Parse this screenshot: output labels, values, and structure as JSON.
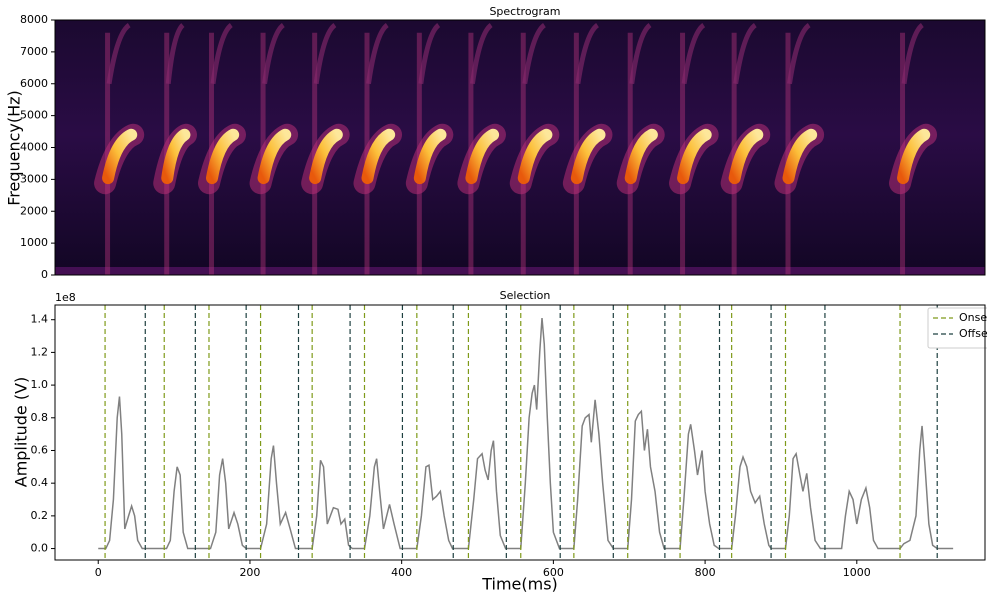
{
  "chart_data": [
    {
      "type": "spectrogram",
      "title": "Spectrogram",
      "ylabel": "Frequency(Hz)",
      "ylim": [
        0,
        8000
      ],
      "yticks": [
        0,
        1000,
        2000,
        3000,
        4000,
        5000,
        6000,
        7000,
        8000
      ],
      "xlim": [
        -57,
        1169
      ]
    },
    {
      "type": "line",
      "title": "Selection",
      "xlabel": "Time(ms)",
      "ylabel": "Amplitude (V)",
      "y_offset_label": "1e8",
      "xlim": [
        -57,
        1169
      ],
      "xticks": [
        0,
        200,
        400,
        600,
        800,
        1000
      ],
      "ylim": [
        -0.07,
        1.49
      ],
      "yticks": [
        {
          "value": 0,
          "label": "0.0"
        },
        0.2,
        0.4,
        0.6,
        0.8,
        {
          "value": 1,
          "label": "1.0"
        },
        1.2,
        1.4
      ],
      "legend": "upper right",
      "series": [
        {
          "color": "#808080",
          "x": [
            0,
            10,
            15,
            20,
            25,
            28,
            31,
            35,
            40,
            44,
            48,
            52,
            58,
            90,
            95,
            100,
            104,
            108,
            112,
            118,
            148,
            155,
            160,
            164,
            168,
            172,
            179,
            184,
            190,
            195,
            214,
            222,
            228,
            231,
            235,
            240,
            247,
            253,
            260,
            282,
            288,
            293,
            297,
            302,
            310,
            316,
            320,
            325,
            330,
            335,
            351,
            358,
            364,
            367,
            371,
            376,
            384,
            390,
            398,
            420,
            426,
            432,
            436,
            441,
            446,
            451,
            456,
            462,
            467,
            488,
            495,
            500,
            506,
            510,
            514,
            518,
            521,
            525,
            530,
            537,
            557,
            563,
            568,
            572,
            575,
            578,
            582,
            585,
            588,
            592,
            596,
            600,
            608,
            627,
            632,
            638,
            642,
            647,
            650,
            655,
            660,
            665,
            672,
            679,
            698,
            703,
            708,
            712,
            716,
            720,
            724,
            728,
            734,
            740,
            746,
            767,
            772,
            778,
            781,
            786,
            790,
            796,
            800,
            806,
            812,
            818,
            835,
            840,
            846,
            850,
            855,
            860,
            866,
            872,
            878,
            884,
            887,
            906,
            911,
            916,
            920,
            925,
            929,
            934,
            939,
            945,
            952,
            980,
            985,
            990,
            995,
            1000,
            1006,
            1012,
            1017,
            1022,
            1028,
            1057,
            1062,
            1070,
            1078,
            1083,
            1086,
            1090,
            1095,
            1100,
            1106,
            1127
          ],
          "y": [
            0,
            0,
            0.05,
            0.3,
            0.8,
            0.93,
            0.7,
            0.12,
            0.2,
            0.26,
            0.2,
            0.05,
            0,
            0,
            0.05,
            0.35,
            0.5,
            0.45,
            0.1,
            0,
            0,
            0.1,
            0.45,
            0.55,
            0.4,
            0.12,
            0.22,
            0.15,
            0.02,
            0,
            0,
            0.15,
            0.55,
            0.63,
            0.4,
            0.15,
            0.22,
            0.12,
            0,
            0,
            0.2,
            0.54,
            0.5,
            0.15,
            0.25,
            0.24,
            0.15,
            0.18,
            0.02,
            0,
            0,
            0.2,
            0.5,
            0.55,
            0.35,
            0.12,
            0.27,
            0.15,
            0,
            0,
            0.2,
            0.5,
            0.51,
            0.3,
            0.32,
            0.35,
            0.2,
            0.05,
            0,
            0,
            0.3,
            0.55,
            0.58,
            0.48,
            0.42,
            0.6,
            0.66,
            0.35,
            0.08,
            0,
            0,
            0.4,
            0.8,
            0.95,
            1.0,
            0.85,
            1.2,
            1.41,
            1.25,
            0.8,
            0.4,
            0.1,
            0,
            0,
            0.3,
            0.75,
            0.8,
            0.82,
            0.65,
            0.91,
            0.7,
            0.4,
            0.05,
            0,
            0,
            0.3,
            0.78,
            0.82,
            0.84,
            0.6,
            0.73,
            0.5,
            0.35,
            0.1,
            0,
            0,
            0.3,
            0.7,
            0.76,
            0.6,
            0.45,
            0.6,
            0.35,
            0.15,
            0.02,
            0,
            0,
            0.2,
            0.5,
            0.56,
            0.5,
            0.35,
            0.28,
            0.32,
            0.15,
            0.02,
            0,
            0,
            0.2,
            0.55,
            0.58,
            0.45,
            0.35,
            0.46,
            0.25,
            0.05,
            0,
            0,
            0.2,
            0.35,
            0.3,
            0.15,
            0.3,
            0.37,
            0.25,
            0.05,
            0,
            0,
            0.03,
            0.05,
            0.2,
            0.6,
            0.75,
            0.5,
            0.15,
            0.02,
            0,
            0
          ]
        },
        {
          "name": "Onset",
          "color": "#7f9a1a",
          "style": "dashed",
          "x": [
            9,
            87,
            146,
            214,
            282,
            351,
            420,
            488,
            557,
            627,
            698,
            767,
            835,
            906,
            1057
          ]
        },
        {
          "name": "Offset",
          "color": "#1e4040",
          "style": "dashed",
          "x": [
            62,
            128,
            195,
            264,
            332,
            401,
            468,
            538,
            609,
            679,
            747,
            819,
            887,
            958,
            1106
          ]
        }
      ]
    }
  ]
}
